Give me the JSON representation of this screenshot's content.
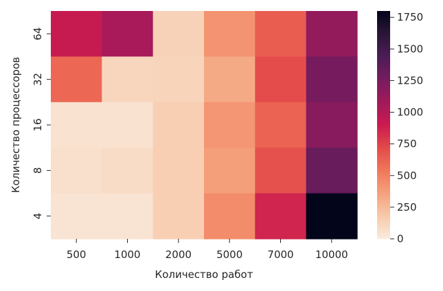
{
  "chart_data": {
    "type": "heatmap",
    "xlabel": "Количество работ",
    "ylabel": "Количество процессоров",
    "x_categories": [
      "500",
      "1000",
      "2000",
      "5000",
      "7000",
      "10000"
    ],
    "y_categories": [
      "64",
      "32",
      "16",
      "8",
      "4"
    ],
    "values": [
      [
        920,
        1050,
        130,
        420,
        640,
        1140
      ],
      [
        600,
        110,
        120,
        320,
        710,
        1260
      ],
      [
        50,
        50,
        150,
        410,
        620,
        1190
      ],
      [
        60,
        80,
        150,
        370,
        690,
        1320
      ],
      [
        40,
        40,
        150,
        450,
        860,
        1800
      ]
    ],
    "colorbar": {
      "min": 0,
      "max": 1800,
      "ticks": [
        "0",
        "250",
        "500",
        "750",
        "1000",
        "1250",
        "1500",
        "1750"
      ],
      "tick_values": [
        0,
        250,
        500,
        750,
        1000,
        1250,
        1500,
        1750
      ]
    },
    "colormap": "rocket_r"
  }
}
